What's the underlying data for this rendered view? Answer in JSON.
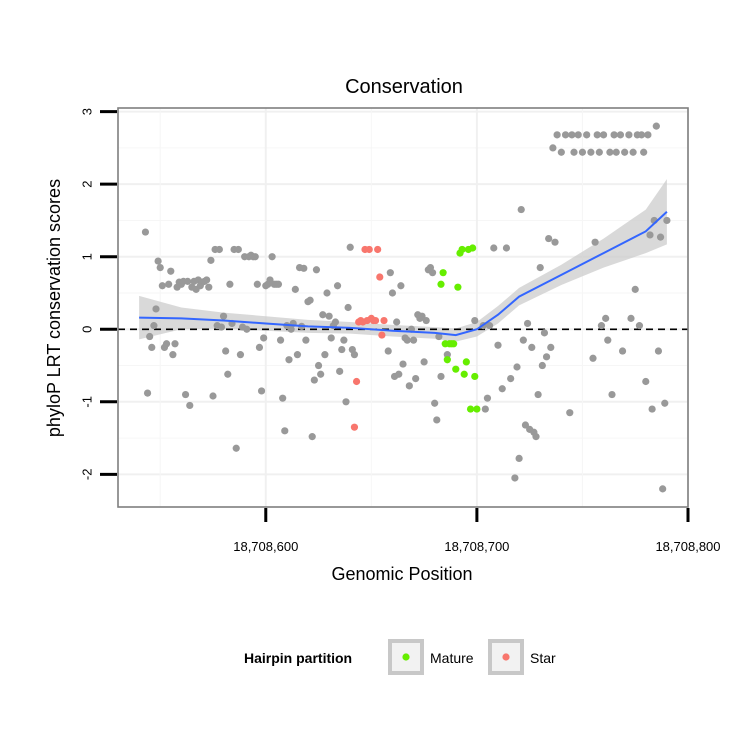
{
  "chart_data": {
    "type": "scatter",
    "title": "Conservation",
    "xlabel": "Genomic Position",
    "ylabel": "phyloP LRT conservation scores",
    "xlim": [
      18708530,
      18708800
    ],
    "ylim": [
      -2.45,
      3.05
    ],
    "xticks": [
      18708600,
      18708700,
      18708800
    ],
    "xtick_labels": [
      "18,708,600",
      "18,708,700",
      "18,708,800"
    ],
    "yticks": [
      -2,
      -1,
      0,
      1,
      2,
      3
    ],
    "ytick_labels": [
      "-2",
      "-1",
      "0",
      "1",
      "2",
      "3"
    ],
    "grid": true,
    "reference_line": {
      "y": 0,
      "style": "dashed",
      "color": "#000000"
    },
    "legend": {
      "title": "Hairpin partition",
      "placement": "bottom",
      "entries": [
        {
          "name": "Mature",
          "color": "#66ee00"
        },
        {
          "name": "Star",
          "color": "#f8766d"
        }
      ]
    },
    "colors": {
      "other": "#999999",
      "mature": "#66ee00",
      "star": "#f8766d",
      "smooth": "#3366ff",
      "band": "#cccccc"
    },
    "series": [
      {
        "name": "Other",
        "points": [
          [
            18708543,
            1.34
          ],
          [
            18708544,
            -0.88
          ],
          [
            18708545,
            -0.1
          ],
          [
            18708546,
            -0.25
          ],
          [
            18708547,
            0.05
          ],
          [
            18708548,
            0.28
          ],
          [
            18708549,
            0.94
          ],
          [
            18708550,
            0.85
          ],
          [
            18708551,
            0.6
          ],
          [
            18708552,
            -0.25
          ],
          [
            18708553,
            -0.2
          ],
          [
            18708554,
            0.62
          ],
          [
            18708555,
            0.8
          ],
          [
            18708556,
            -0.35
          ],
          [
            18708557,
            -0.2
          ],
          [
            18708558,
            0.58
          ],
          [
            18708559,
            0.65
          ],
          [
            18708560,
            0.62
          ],
          [
            18708561,
            0.66
          ],
          [
            18708562,
            -0.9
          ],
          [
            18708563,
            0.66
          ],
          [
            18708564,
            -1.05
          ],
          [
            18708565,
            0.58
          ],
          [
            18708566,
            0.66
          ],
          [
            18708567,
            0.55
          ],
          [
            18708568,
            0.68
          ],
          [
            18708569,
            0.6
          ],
          [
            18708570,
            0.65
          ],
          [
            18708571,
            0.66
          ],
          [
            18708572,
            0.68
          ],
          [
            18708573,
            0.58
          ],
          [
            18708574,
            0.95
          ],
          [
            18708575,
            -0.92
          ],
          [
            18708576,
            1.1
          ],
          [
            18708577,
            0.05
          ],
          [
            18708578,
            1.1
          ],
          [
            18708579,
            0.03
          ],
          [
            18708580,
            0.18
          ],
          [
            18708581,
            -0.3
          ],
          [
            18708582,
            -0.62
          ],
          [
            18708583,
            0.62
          ],
          [
            18708584,
            0.08
          ],
          [
            18708585,
            1.1
          ],
          [
            18708586,
            -1.64
          ],
          [
            18708587,
            1.1
          ],
          [
            18708588,
            -0.35
          ],
          [
            18708589,
            0.03
          ],
          [
            18708590,
            1.0
          ],
          [
            18708591,
            0.0
          ],
          [
            18708592,
            1.0
          ],
          [
            18708593,
            1.02
          ],
          [
            18708594,
            1.0
          ],
          [
            18708595,
            1.0
          ],
          [
            18708596,
            0.62
          ],
          [
            18708597,
            -0.25
          ],
          [
            18708598,
            -0.85
          ],
          [
            18708599,
            -0.12
          ],
          [
            18708600,
            0.6
          ],
          [
            18708601,
            0.62
          ],
          [
            18708602,
            0.68
          ],
          [
            18708603,
            1.0
          ],
          [
            18708604,
            0.62
          ],
          [
            18708605,
            0.62
          ],
          [
            18708606,
            0.62
          ],
          [
            18708607,
            -0.15
          ],
          [
            18708608,
            -0.95
          ],
          [
            18708609,
            -1.4
          ],
          [
            18708610,
            0.05
          ],
          [
            18708611,
            -0.42
          ],
          [
            18708612,
            0.0
          ],
          [
            18708613,
            0.08
          ],
          [
            18708614,
            0.55
          ],
          [
            18708615,
            -0.35
          ],
          [
            18708616,
            0.85
          ],
          [
            18708617,
            0.04
          ],
          [
            18708618,
            0.84
          ],
          [
            18708619,
            -0.15
          ],
          [
            18708620,
            0.38
          ],
          [
            18708621,
            0.4
          ],
          [
            18708622,
            -1.48
          ],
          [
            18708623,
            -0.7
          ],
          [
            18708624,
            0.82
          ],
          [
            18708625,
            -0.5
          ],
          [
            18708626,
            -0.62
          ],
          [
            18708627,
            0.2
          ],
          [
            18708628,
            -0.35
          ],
          [
            18708629,
            0.5
          ],
          [
            18708630,
            0.18
          ],
          [
            18708631,
            -0.12
          ],
          [
            18708632,
            0.05
          ],
          [
            18708633,
            0.1
          ],
          [
            18708634,
            0.6
          ],
          [
            18708635,
            -0.58
          ],
          [
            18708636,
            -0.28
          ],
          [
            18708637,
            -0.15
          ],
          [
            18708638,
            -1.0
          ],
          [
            18708639,
            0.3
          ],
          [
            18708640,
            1.13
          ],
          [
            18708641,
            -0.28
          ],
          [
            18708642,
            -0.35
          ],
          [
            18708658,
            -0.3
          ],
          [
            18708659,
            0.78
          ],
          [
            18708660,
            0.5
          ],
          [
            18708661,
            -0.65
          ],
          [
            18708662,
            0.1
          ],
          [
            18708663,
            -0.62
          ],
          [
            18708664,
            0.6
          ],
          [
            18708665,
            -0.48
          ],
          [
            18708666,
            -0.12
          ],
          [
            18708667,
            -0.15
          ],
          [
            18708668,
            -0.78
          ],
          [
            18708669,
            0.0
          ],
          [
            18708670,
            -0.15
          ],
          [
            18708671,
            -0.68
          ],
          [
            18708672,
            0.2
          ],
          [
            18708673,
            0.15
          ],
          [
            18708674,
            0.18
          ],
          [
            18708675,
            -0.45
          ],
          [
            18708676,
            0.12
          ],
          [
            18708677,
            0.82
          ],
          [
            18708678,
            0.85
          ],
          [
            18708679,
            0.78
          ],
          [
            18708680,
            -1.02
          ],
          [
            18708681,
            -1.25
          ],
          [
            18708682,
            -0.1
          ],
          [
            18708683,
            -0.65
          ],
          [
            18708686,
            -0.35
          ],
          [
            18708699,
            0.12
          ],
          [
            18708703,
            0.05
          ],
          [
            18708704,
            -1.1
          ],
          [
            18708705,
            -0.95
          ],
          [
            18708706,
            0.05
          ],
          [
            18708708,
            1.12
          ],
          [
            18708710,
            -0.22
          ],
          [
            18708712,
            -0.82
          ],
          [
            18708714,
            1.12
          ],
          [
            18708716,
            -0.68
          ],
          [
            18708718,
            -2.05
          ],
          [
            18708719,
            -0.52
          ],
          [
            18708720,
            -1.78
          ],
          [
            18708721,
            1.65
          ],
          [
            18708722,
            -0.15
          ],
          [
            18708723,
            -1.32
          ],
          [
            18708724,
            0.08
          ],
          [
            18708725,
            -1.38
          ],
          [
            18708726,
            -0.25
          ],
          [
            18708727,
            -1.42
          ],
          [
            18708728,
            -1.48
          ],
          [
            18708729,
            -0.9
          ],
          [
            18708730,
            0.85
          ],
          [
            18708731,
            -0.5
          ],
          [
            18708732,
            -0.05
          ],
          [
            18708733,
            -0.38
          ],
          [
            18708734,
            1.25
          ],
          [
            18708735,
            -0.25
          ],
          [
            18708736,
            2.5
          ],
          [
            18708737,
            1.2
          ],
          [
            18708738,
            2.68
          ],
          [
            18708740,
            2.44
          ],
          [
            18708742,
            2.68
          ],
          [
            18708744,
            -1.15
          ],
          [
            18708745,
            2.68
          ],
          [
            18708746,
            2.44
          ],
          [
            18708748,
            2.68
          ],
          [
            18708750,
            2.44
          ],
          [
            18708752,
            2.68
          ],
          [
            18708754,
            2.44
          ],
          [
            18708755,
            -0.4
          ],
          [
            18708756,
            1.2
          ],
          [
            18708757,
            2.68
          ],
          [
            18708758,
            2.44
          ],
          [
            18708759,
            0.05
          ],
          [
            18708760,
            2.68
          ],
          [
            18708761,
            0.15
          ],
          [
            18708762,
            -0.15
          ],
          [
            18708763,
            2.44
          ],
          [
            18708764,
            -0.9
          ],
          [
            18708765,
            2.68
          ],
          [
            18708766,
            2.44
          ],
          [
            18708768,
            2.68
          ],
          [
            18708769,
            -0.3
          ],
          [
            18708770,
            2.44
          ],
          [
            18708772,
            2.68
          ],
          [
            18708773,
            0.15
          ],
          [
            18708774,
            2.44
          ],
          [
            18708775,
            0.55
          ],
          [
            18708776,
            2.68
          ],
          [
            18708777,
            0.05
          ],
          [
            18708778,
            2.68
          ],
          [
            18708779,
            2.44
          ],
          [
            18708780,
            -0.72
          ],
          [
            18708781,
            2.68
          ],
          [
            18708782,
            1.3
          ],
          [
            18708783,
            -1.1
          ],
          [
            18708784,
            1.5
          ],
          [
            18708785,
            2.8
          ],
          [
            18708786,
            -0.3
          ],
          [
            18708787,
            1.27
          ],
          [
            18708788,
            -2.2
          ],
          [
            18708789,
            -1.02
          ],
          [
            18708790,
            1.5
          ]
        ]
      },
      {
        "name": "Mature",
        "points": [
          [
            18708683,
            0.62
          ],
          [
            18708684,
            0.78
          ],
          [
            18708685,
            -0.2
          ],
          [
            18708686,
            -0.42
          ],
          [
            18708687,
            -0.2
          ],
          [
            18708688,
            -0.2
          ],
          [
            18708689,
            -0.2
          ],
          [
            18708690,
            -0.55
          ],
          [
            18708691,
            0.58
          ],
          [
            18708692,
            1.05
          ],
          [
            18708693,
            1.1
          ],
          [
            18708694,
            -0.62
          ],
          [
            18708695,
            -0.45
          ],
          [
            18708696,
            1.1
          ],
          [
            18708697,
            -1.1
          ],
          [
            18708698,
            1.12
          ],
          [
            18708699,
            -0.65
          ],
          [
            18708700,
            -1.1
          ]
        ]
      },
      {
        "name": "Star",
        "points": [
          [
            18708642,
            -1.35
          ],
          [
            18708643,
            -0.72
          ],
          [
            18708644,
            0.1
          ],
          [
            18708645,
            0.12
          ],
          [
            18708646,
            0.1
          ],
          [
            18708647,
            1.1
          ],
          [
            18708648,
            0.12
          ],
          [
            18708649,
            1.1
          ],
          [
            18708650,
            0.15
          ],
          [
            18708651,
            0.12
          ],
          [
            18708652,
            0.12
          ],
          [
            18708653,
            1.1
          ],
          [
            18708654,
            0.72
          ],
          [
            18708655,
            -0.08
          ],
          [
            18708656,
            0.12
          ]
        ]
      }
    ],
    "smooth": {
      "x": [
        18708540,
        18708560,
        18708580,
        18708600,
        18708620,
        18708640,
        18708660,
        18708680,
        18708690,
        18708700,
        18708710,
        18708720,
        18708740,
        18708760,
        18708780,
        18708790
      ],
      "y": [
        0.16,
        0.15,
        0.12,
        0.08,
        0.04,
        0.02,
        -0.02,
        -0.05,
        -0.08,
        0.0,
        0.2,
        0.45,
        0.75,
        1.05,
        1.35,
        1.62
      ],
      "se": [
        0.3,
        0.15,
        0.11,
        0.1,
        0.09,
        0.08,
        0.08,
        0.08,
        0.09,
        0.1,
        0.12,
        0.12,
        0.14,
        0.2,
        0.3,
        0.45
      ]
    }
  }
}
